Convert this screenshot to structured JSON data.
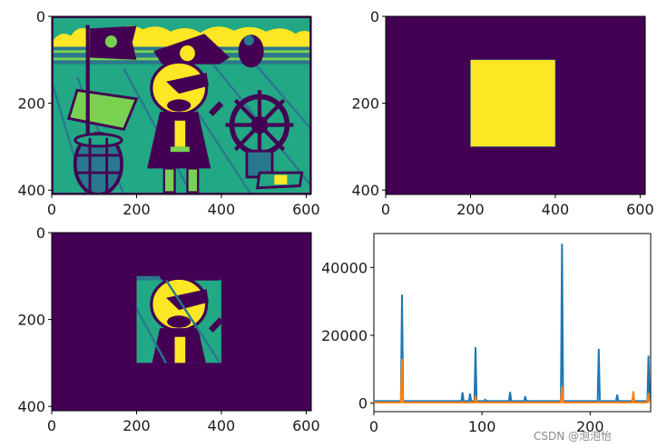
{
  "colors": {
    "viridis_dark": "#440154",
    "viridis_teal": "#2a788e",
    "viridis_green": "#22a884",
    "viridis_lime": "#7ad151",
    "viridis_yellow": "#fde725",
    "series_blue": "#1f77b4",
    "series_orange": "#ff7f0e"
  },
  "chart_data": [
    {
      "type": "heatmap",
      "content": "pirate cartoon image (grayscale shown with viridis colormap)",
      "x_ticks": [
        "0",
        "200",
        "400",
        "600"
      ],
      "y_ticks": [
        "0",
        "200",
        "400"
      ],
      "xlim": [
        0,
        612
      ],
      "ylim": [
        0,
        410
      ]
    },
    {
      "type": "heatmap",
      "content": "binary mask: square region = 1, background = 0",
      "mask_rect": {
        "x0": 200,
        "x1": 400,
        "y0": 100,
        "y1": 300
      },
      "x_ticks": [
        "0",
        "200",
        "400",
        "600"
      ],
      "y_ticks": [
        "0",
        "200",
        "400"
      ],
      "xlim": [
        0,
        612
      ],
      "ylim": [
        0,
        410
      ]
    },
    {
      "type": "heatmap",
      "content": "masked image: only square region of pirate image visible",
      "mask_rect": {
        "x0": 200,
        "x1": 400,
        "y0": 100,
        "y1": 300
      },
      "x_ticks": [
        "0",
        "200",
        "400",
        "600"
      ],
      "y_ticks": [
        "0",
        "200",
        "400"
      ],
      "xlim": [
        0,
        612
      ],
      "ylim": [
        0,
        410
      ]
    },
    {
      "type": "line",
      "xlim": [
        0,
        256
      ],
      "ylim": [
        -2500,
        50000
      ],
      "x_ticks": [
        "0",
        "100",
        "200"
      ],
      "y_ticks": [
        "0",
        "20000",
        "40000"
      ],
      "series": [
        {
          "color": "#1f77b4",
          "peaks": [
            {
              "x": 26,
              "y": 32000
            },
            {
              "x": 82,
              "y": 3200
            },
            {
              "x": 89,
              "y": 2800
            },
            {
              "x": 94,
              "y": 16500
            },
            {
              "x": 103,
              "y": 1000
            },
            {
              "x": 126,
              "y": 3300
            },
            {
              "x": 140,
              "y": 2000
            },
            {
              "x": 174,
              "y": 47000
            },
            {
              "x": 208,
              "y": 16000
            },
            {
              "x": 225,
              "y": 2500
            },
            {
              "x": 254,
              "y": 14000
            }
          ]
        },
        {
          "color": "#ff7f0e",
          "peaks": [
            {
              "x": 26,
              "y": 13000
            },
            {
              "x": 94,
              "y": 2200
            },
            {
              "x": 174,
              "y": 5000
            },
            {
              "x": 240,
              "y": 3500
            },
            {
              "x": 254,
              "y": 3000
            }
          ]
        }
      ]
    }
  ],
  "watermark": "CSDN @泡泡怡"
}
